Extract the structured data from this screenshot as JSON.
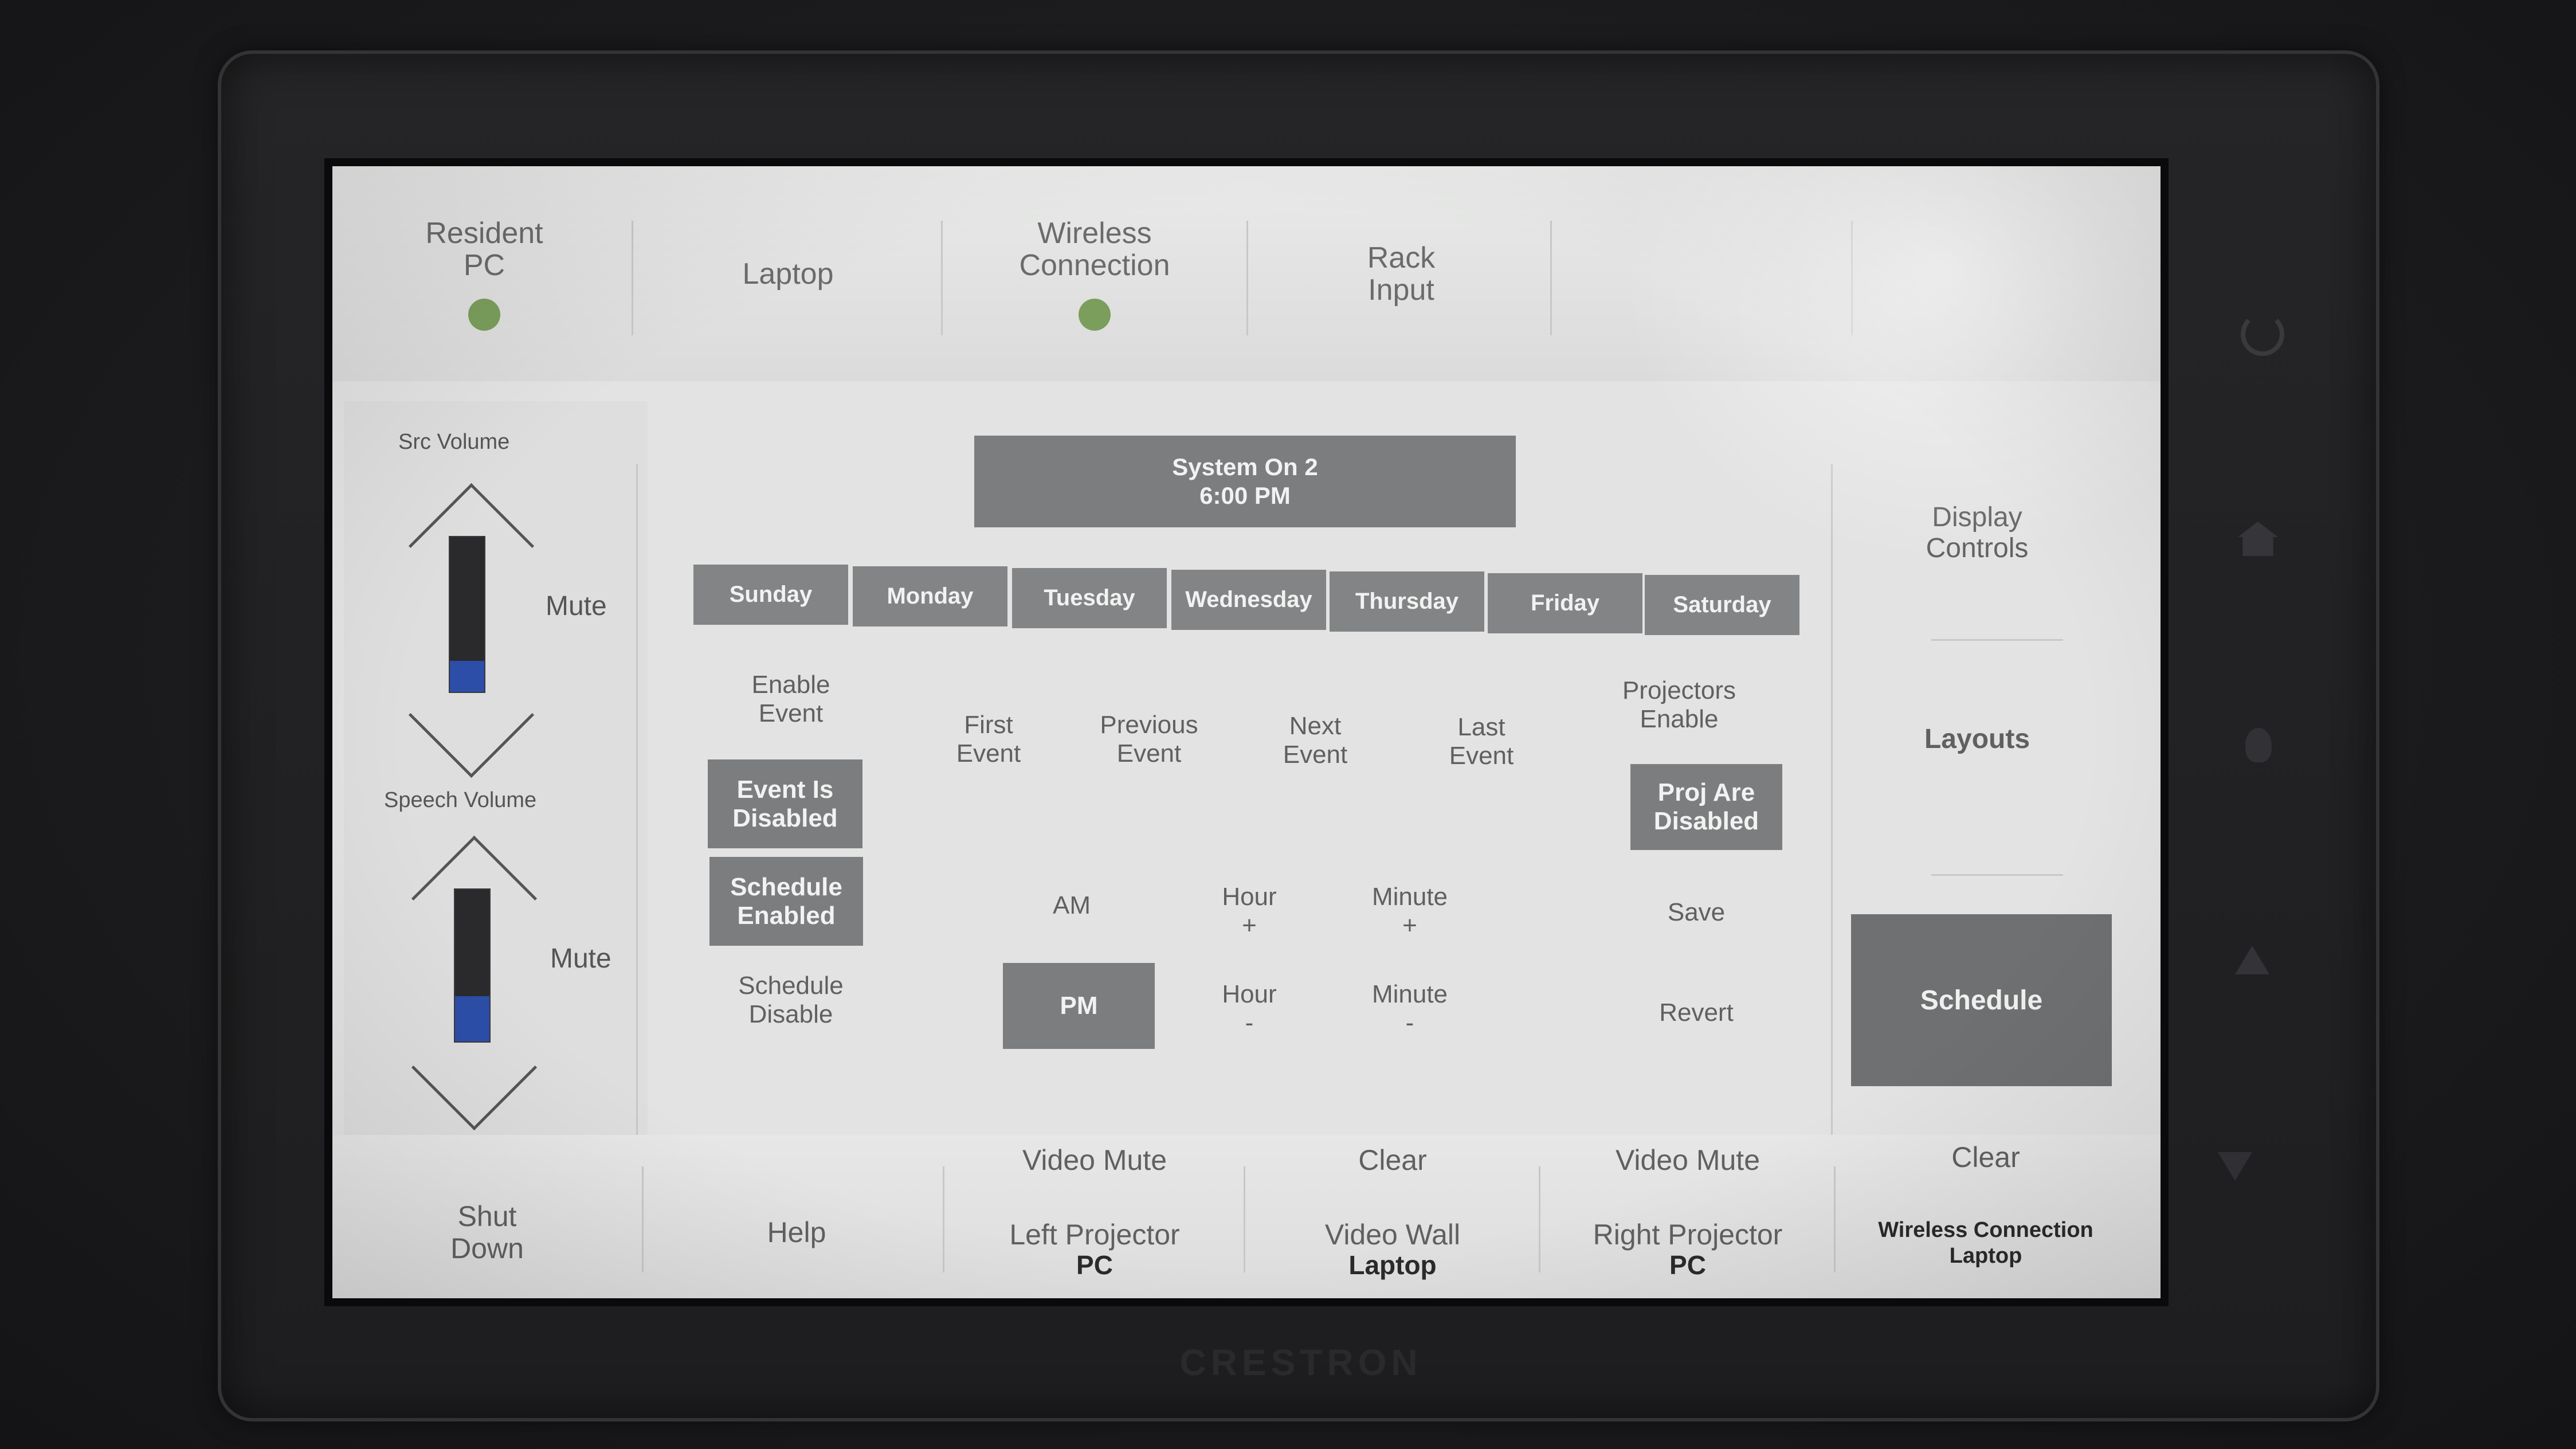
{
  "device": {
    "brand": "CRESTRON"
  },
  "top_bar": {
    "sources": [
      {
        "label": "Resident\nPC",
        "active": true
      },
      {
        "label": "Laptop",
        "active": false
      },
      {
        "label": "Wireless\nConnection",
        "active": true
      },
      {
        "label": "Rack\nInput",
        "active": false
      },
      {
        "label": "",
        "active": false
      },
      {
        "label": "",
        "active": false
      }
    ],
    "active_indicator_color": "#7b9e5c"
  },
  "volume": {
    "src": {
      "label": "Src Volume",
      "mute_label": "Mute",
      "level": 0.2
    },
    "speech": {
      "label": "Speech Volume",
      "mute_label": "Mute",
      "level": 0.3
    },
    "fill_color": "#2c4ea8"
  },
  "schedule": {
    "event_title": "System On 2",
    "event_time": "6:00 PM",
    "days": [
      "Sunday",
      "Monday",
      "Tuesday",
      "Wednesday",
      "Thursday",
      "Friday",
      "Saturday"
    ],
    "enable_event_label": "Enable\nEvent",
    "event_is_disabled_label": "Event Is\nDisabled",
    "schedule_enabled_label": "Schedule\nEnabled",
    "schedule_disable_label": "Schedule\nDisable",
    "first_event_label": "First\nEvent",
    "previous_event_label": "Previous\nEvent",
    "next_event_label": "Next\nEvent",
    "last_event_label": "Last\nEvent",
    "projectors_enable_label": "Projectors\nEnable",
    "proj_are_disabled_label": "Proj Are\nDisabled",
    "am_label": "AM",
    "pm_label": "PM",
    "hour_plus_label": "Hour\n+",
    "hour_minus_label": "Hour\n-",
    "minute_plus_label": "Minute\n+",
    "minute_minus_label": "Minute\n-",
    "save_label": "Save",
    "revert_label": "Revert"
  },
  "right_nav": {
    "display_controls_label": "Display\nControls",
    "layouts_label": "Layouts",
    "schedule_label": "Schedule"
  },
  "bottom_bar": {
    "shut_down_label": "Shut\nDown",
    "help_label": "Help",
    "left_projector": {
      "action": "Video Mute",
      "name": "Left Projector",
      "source": "PC"
    },
    "video_wall": {
      "action": "Clear",
      "name": "Video Wall",
      "source": "Laptop"
    },
    "right_projector": {
      "action": "Video Mute",
      "name": "Right Projector",
      "source": "PC"
    },
    "wireless": {
      "action": "Clear",
      "name": "Wireless Connection",
      "source": "Laptop"
    }
  }
}
